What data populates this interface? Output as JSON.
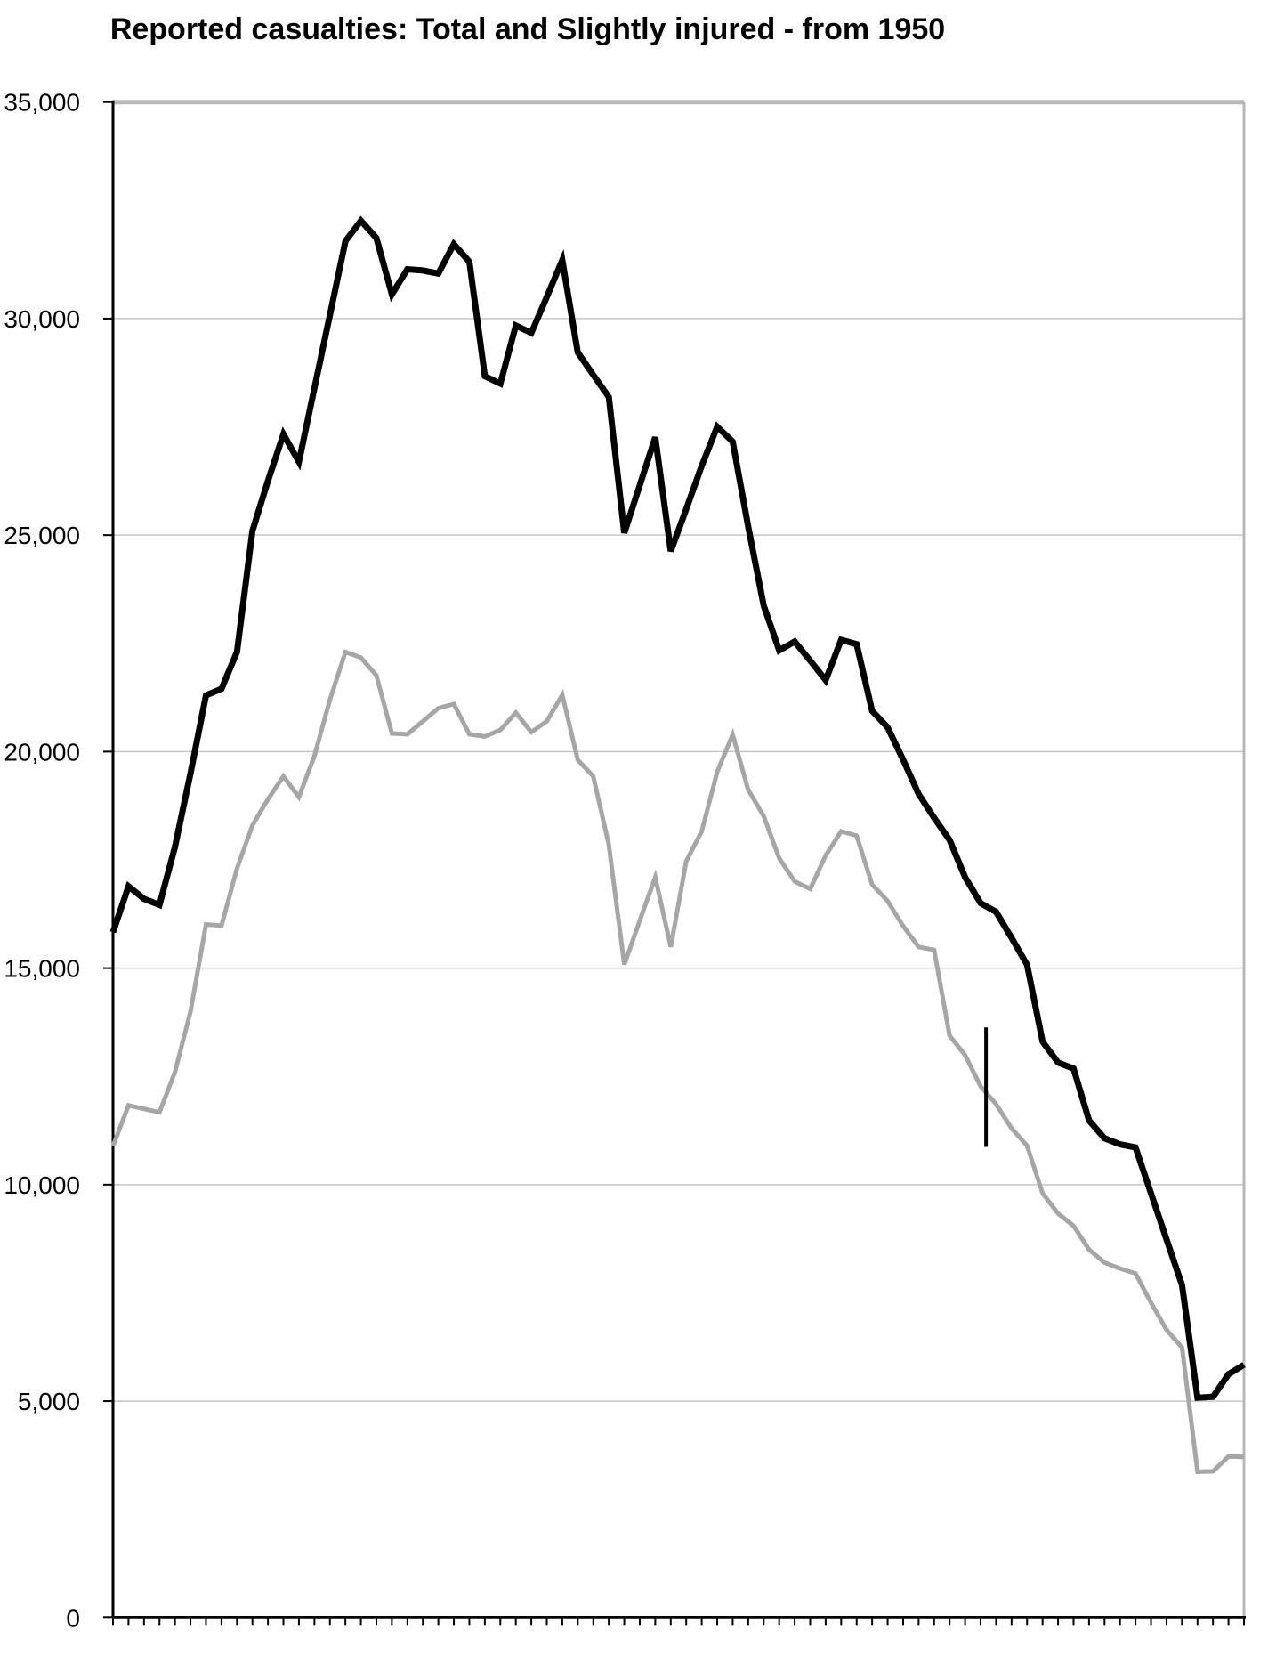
{
  "chart_data": {
    "type": "line",
    "title": "Reported casualties: Total and Slightly injured - from 1950",
    "xlabel": "",
    "ylabel": "",
    "x_start_year": 1950,
    "x_end_year": 2023,
    "ylim": [
      0,
      35000
    ],
    "y_tick_step": 5000,
    "y_tick_labels": [
      "35,000",
      "30,000",
      "25,000",
      "20,000",
      "15,000",
      "10,000",
      "5,000",
      "0"
    ],
    "grid": "horizontal",
    "legend_position": "none",
    "series": [
      {
        "name": "Total",
        "color": "#000000",
        "stroke_width": 7,
        "values": [
          15830,
          16890,
          16600,
          16460,
          17800,
          19500,
          21300,
          21450,
          22300,
          25100,
          26250,
          27330,
          26690,
          28390,
          30090,
          31790,
          32260,
          31860,
          30560,
          31140,
          31110,
          31040,
          31720,
          31310,
          28670,
          28500,
          29840,
          29670,
          30500,
          31350,
          29220,
          28700,
          28190,
          25050,
          26150,
          27260,
          24630,
          25600,
          26600,
          27500,
          27160,
          25200,
          23370,
          22340,
          22540,
          22100,
          21650,
          22580,
          22480,
          20940,
          20560,
          19810,
          19020,
          18470,
          17960,
          17100,
          16500,
          16300,
          15700,
          15080,
          13300,
          12820,
          12680,
          11480,
          11070,
          10930,
          10860,
          9800,
          8740,
          7680,
          5080,
          5100,
          5620,
          5840
        ]
      },
      {
        "name": "Slightly injured",
        "color": "#a6a6a6",
        "stroke_width": 5,
        "values": [
          10890,
          11830,
          11750,
          11670,
          12600,
          14000,
          16010,
          15980,
          17300,
          18300,
          18900,
          19430,
          18950,
          19900,
          21200,
          22300,
          22170,
          21760,
          20420,
          20400,
          20700,
          21000,
          21100,
          20400,
          20350,
          20500,
          20900,
          20450,
          20700,
          21310,
          19810,
          19430,
          17850,
          15080,
          16100,
          17100,
          15490,
          17470,
          18160,
          19530,
          20390,
          19120,
          18510,
          17540,
          17000,
          16830,
          17600,
          18160,
          18060,
          16930,
          16550,
          15970,
          15490,
          15420,
          13440,
          12990,
          12270,
          11860,
          11300,
          10900,
          9800,
          9330,
          9050,
          8500,
          8200,
          8060,
          7950,
          7270,
          6650,
          6240,
          3370,
          3380,
          3720,
          3710
        ]
      }
    ],
    "annotation_marker": {
      "description": "short vertical black dash crossing the Slightly injured line",
      "x_year": 2006.35,
      "value_top": 13630,
      "value_bottom": 10870
    },
    "colors": {
      "gridline": "#c6c6c6",
      "plot_border": "#b8b8b8",
      "axis": "#000000",
      "text": "#000000"
    }
  }
}
